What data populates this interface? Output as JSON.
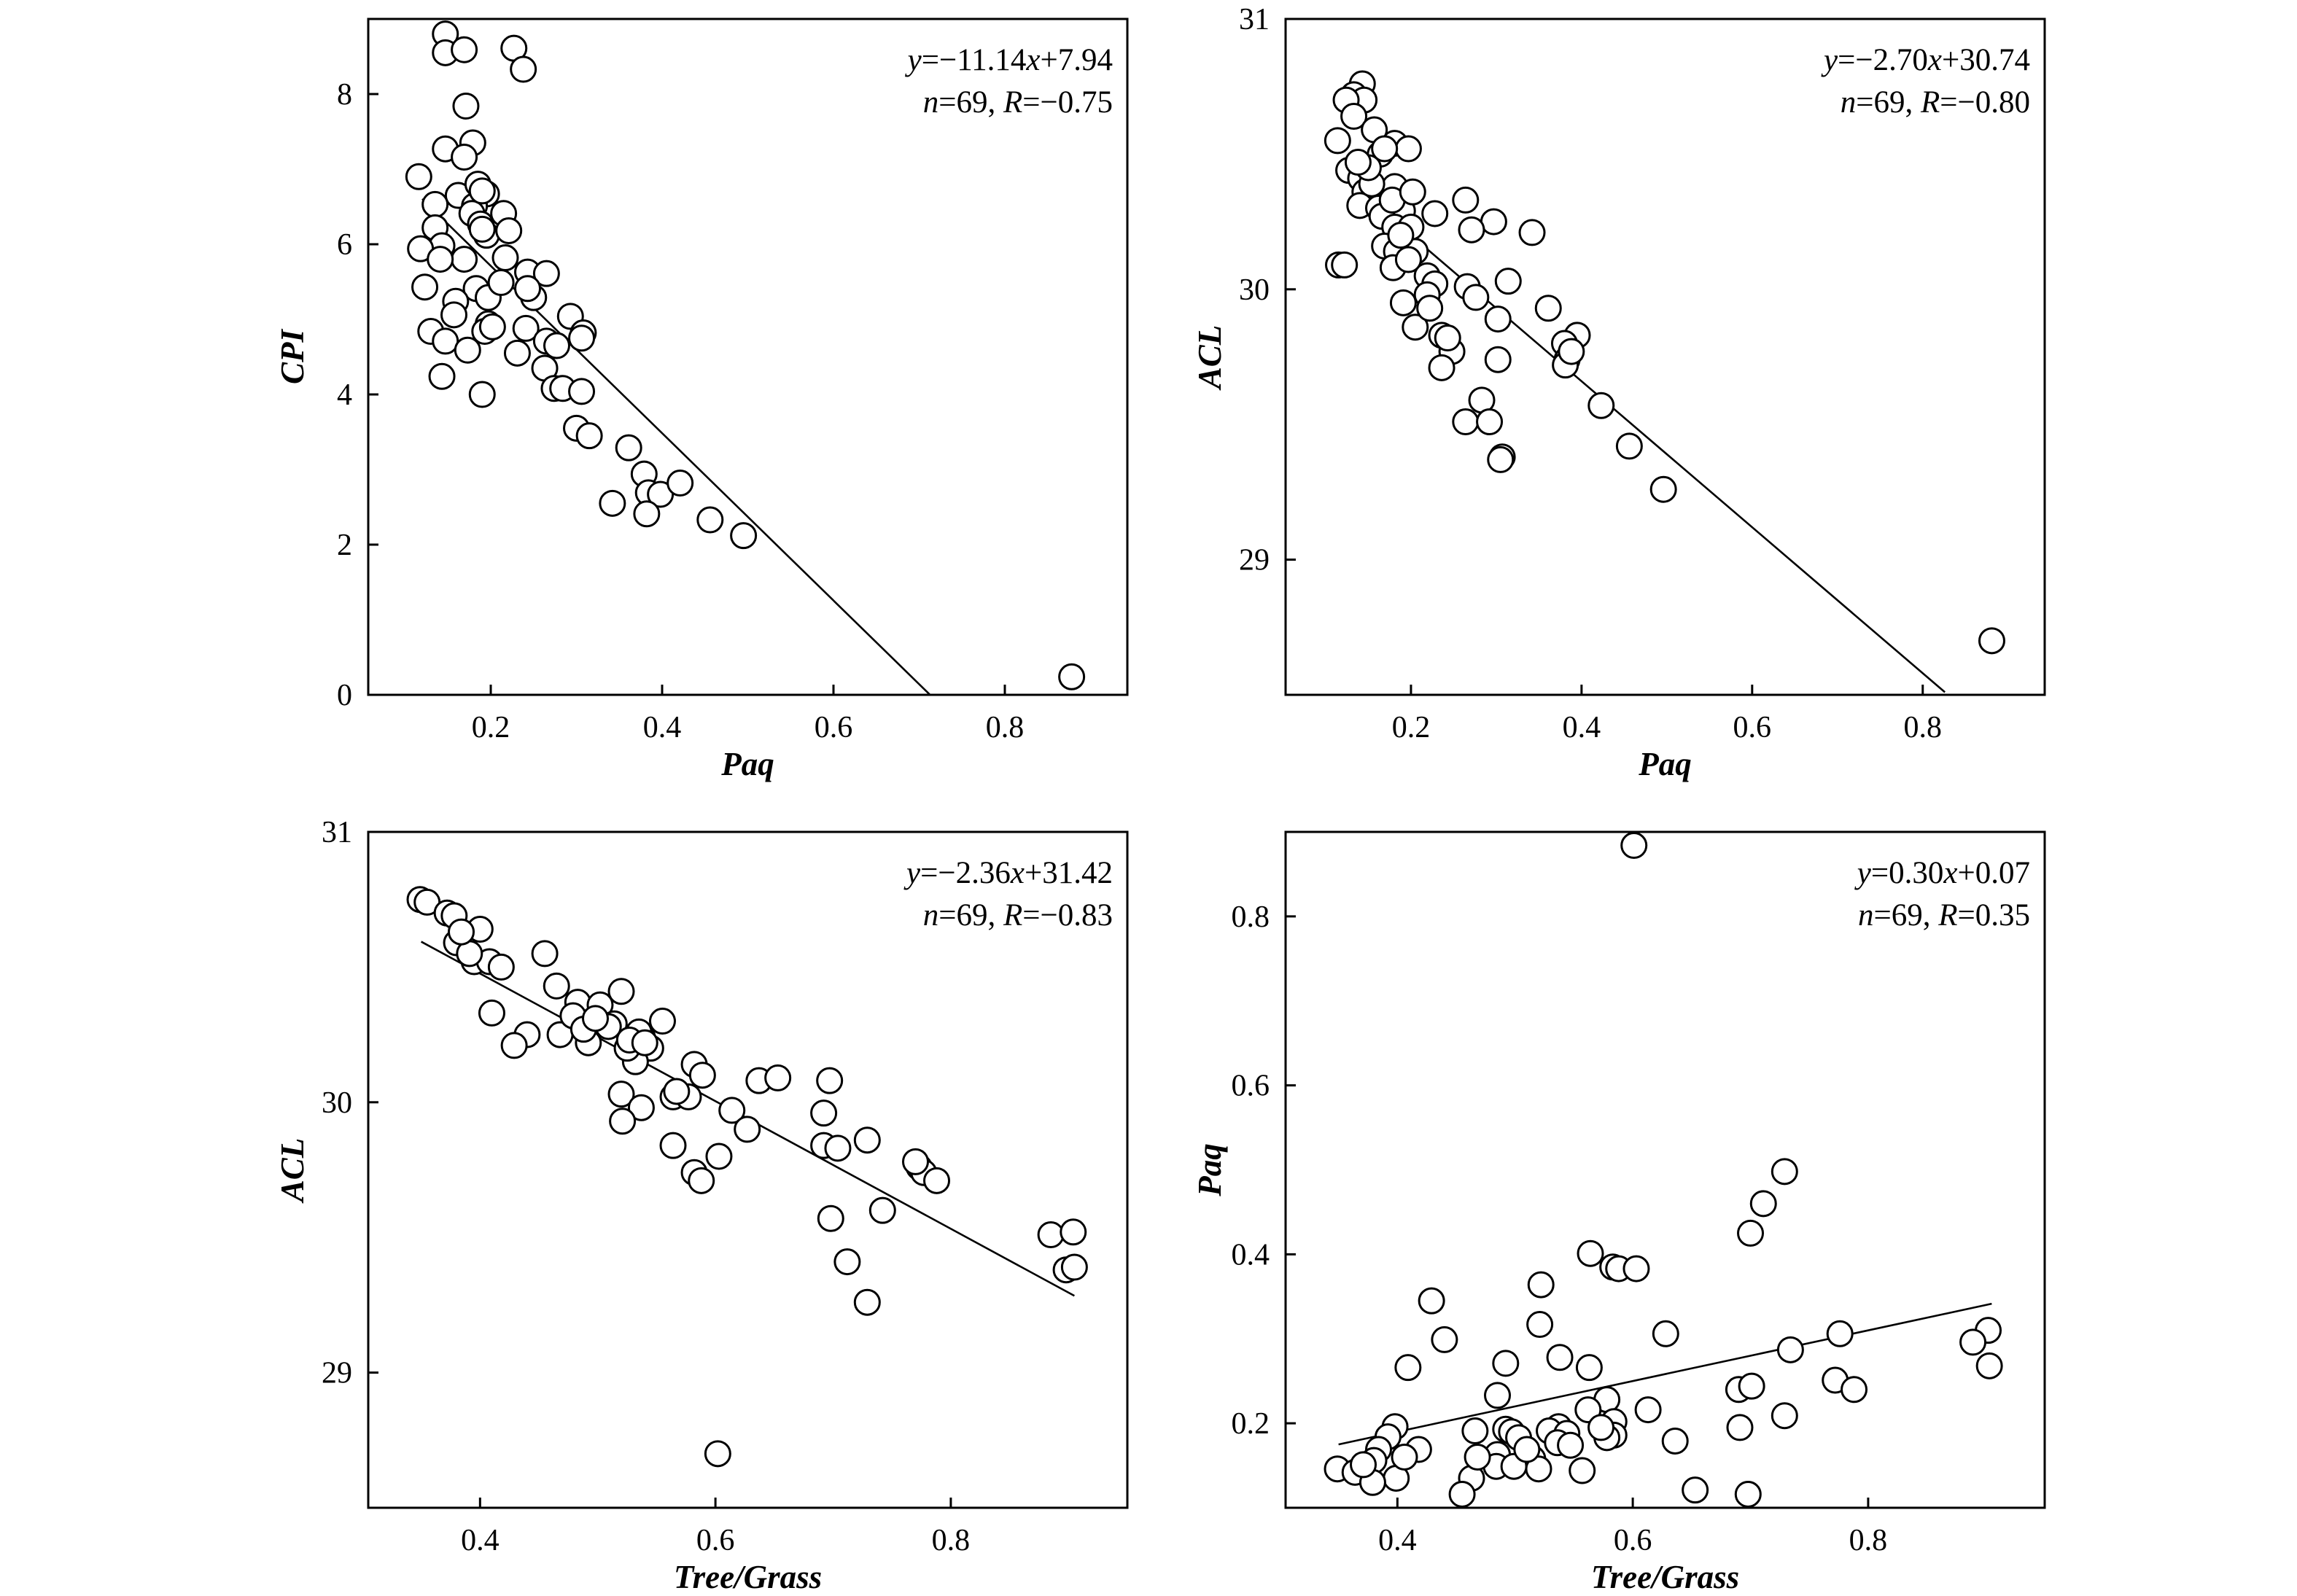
{
  "colors": {
    "marker_edge": "#000000",
    "marker_fill": "#ffffff",
    "line": "#000000",
    "frame": "#000000"
  },
  "chart_data": [
    {
      "type": "scatter",
      "xlabel": "Paq",
      "ylabel": "CPI",
      "xlim": [
        0.057,
        0.943
      ],
      "ylim": [
        0,
        9
      ],
      "xticks": [
        "0.2",
        "0.4",
        "0.6",
        "0.8"
      ],
      "yticks": [
        "0",
        "2",
        "4",
        "6",
        "8"
      ],
      "grid": false,
      "equation": "y=−11.14x+7.94",
      "stats": "n=69, R=−0.75",
      "fit": {
        "slope": -11.14,
        "intercept": 7.94,
        "x_range": [
          0.12,
          0.713
        ]
      },
      "points": [
        [
          0.147,
          8.8
        ],
        [
          0.147,
          8.55
        ],
        [
          0.169,
          8.59
        ],
        [
          0.227,
          8.61
        ],
        [
          0.238,
          8.33
        ],
        [
          0.171,
          7.84
        ],
        [
          0.147,
          7.27
        ],
        [
          0.179,
          7.35
        ],
        [
          0.169,
          7.16
        ],
        [
          0.116,
          6.9
        ],
        [
          0.162,
          6.65
        ],
        [
          0.185,
          6.8
        ],
        [
          0.195,
          6.67
        ],
        [
          0.135,
          6.53
        ],
        [
          0.181,
          6.51
        ],
        [
          0.178,
          6.41
        ],
        [
          0.215,
          6.41
        ],
        [
          0.135,
          6.22
        ],
        [
          0.188,
          6.27
        ],
        [
          0.195,
          6.12
        ],
        [
          0.143,
          5.98
        ],
        [
          0.118,
          5.94
        ],
        [
          0.169,
          5.8
        ],
        [
          0.141,
          5.8
        ],
        [
          0.217,
          5.82
        ],
        [
          0.243,
          5.63
        ],
        [
          0.265,
          5.61
        ],
        [
          0.183,
          5.41
        ],
        [
          0.123,
          5.43
        ],
        [
          0.159,
          5.24
        ],
        [
          0.197,
          5.29
        ],
        [
          0.25,
          5.29
        ],
        [
          0.293,
          5.04
        ],
        [
          0.197,
          4.94
        ],
        [
          0.193,
          4.84
        ],
        [
          0.202,
          4.9
        ],
        [
          0.241,
          4.88
        ],
        [
          0.13,
          4.84
        ],
        [
          0.147,
          4.71
        ],
        [
          0.308,
          4.82
        ],
        [
          0.306,
          4.75
        ],
        [
          0.173,
          4.59
        ],
        [
          0.265,
          4.71
        ],
        [
          0.277,
          4.65
        ],
        [
          0.231,
          4.55
        ],
        [
          0.263,
          4.35
        ],
        [
          0.143,
          4.24
        ],
        [
          0.274,
          4.08
        ],
        [
          0.284,
          4.08
        ],
        [
          0.306,
          4.04
        ],
        [
          0.19,
          4.0
        ],
        [
          0.3,
          3.55
        ],
        [
          0.315,
          3.45
        ],
        [
          0.361,
          3.29
        ],
        [
          0.379,
          2.94
        ],
        [
          0.384,
          2.69
        ],
        [
          0.398,
          2.67
        ],
        [
          0.421,
          2.82
        ],
        [
          0.342,
          2.55
        ],
        [
          0.382,
          2.41
        ],
        [
          0.456,
          2.33
        ],
        [
          0.495,
          2.12
        ],
        [
          0.878,
          0.24
        ],
        [
          0.19,
          6.2
        ],
        [
          0.212,
          5.49
        ],
        [
          0.157,
          5.06
        ],
        [
          0.19,
          6.71
        ],
        [
          0.221,
          6.18
        ],
        [
          0.243,
          5.41
        ]
      ]
    },
    {
      "type": "scatter",
      "xlabel": "Paq",
      "ylabel": "ACL",
      "xlim": [
        0.053,
        0.943
      ],
      "ylim": [
        28.5,
        31
      ],
      "xticks": [
        "0.2",
        "0.4",
        "0.6",
        "0.8"
      ],
      "yticks": [
        "29",
        "30",
        "31"
      ],
      "grid": false,
      "equation": "y=−2.70x+30.74",
      "stats": "n=69, R=−0.80",
      "fit": {
        "slope": -2.7,
        "intercept": 30.74,
        "x_range": [
          0.114,
          0.826
        ]
      },
      "points": [
        [
          0.143,
          30.76
        ],
        [
          0.133,
          30.72
        ],
        [
          0.145,
          30.7
        ],
        [
          0.124,
          30.7
        ],
        [
          0.133,
          30.64
        ],
        [
          0.157,
          30.59
        ],
        [
          0.114,
          30.55
        ],
        [
          0.181,
          30.54
        ],
        [
          0.197,
          30.52
        ],
        [
          0.164,
          30.5
        ],
        [
          0.169,
          30.52
        ],
        [
          0.127,
          30.44
        ],
        [
          0.141,
          30.41
        ],
        [
          0.181,
          30.38
        ],
        [
          0.146,
          30.36
        ],
        [
          0.14,
          30.31
        ],
        [
          0.162,
          30.3
        ],
        [
          0.19,
          30.29
        ],
        [
          0.228,
          30.28
        ],
        [
          0.264,
          30.33
        ],
        [
          0.166,
          30.27
        ],
        [
          0.181,
          30.23
        ],
        [
          0.2,
          30.23
        ],
        [
          0.297,
          30.25
        ],
        [
          0.271,
          30.22
        ],
        [
          0.342,
          30.21
        ],
        [
          0.169,
          30.16
        ],
        [
          0.183,
          30.14
        ],
        [
          0.205,
          30.14
        ],
        [
          0.115,
          30.09
        ],
        [
          0.122,
          30.09
        ],
        [
          0.179,
          30.08
        ],
        [
          0.219,
          30.05
        ],
        [
          0.228,
          30.02
        ],
        [
          0.266,
          30.01
        ],
        [
          0.314,
          30.03
        ],
        [
          0.219,
          29.98
        ],
        [
          0.191,
          29.95
        ],
        [
          0.276,
          29.97
        ],
        [
          0.361,
          29.93
        ],
        [
          0.302,
          29.89
        ],
        [
          0.205,
          29.86
        ],
        [
          0.236,
          29.83
        ],
        [
          0.395,
          29.83
        ],
        [
          0.38,
          29.8
        ],
        [
          0.248,
          29.77
        ],
        [
          0.302,
          29.74
        ],
        [
          0.383,
          29.74
        ],
        [
          0.236,
          29.71
        ],
        [
          0.381,
          29.72
        ],
        [
          0.423,
          29.57
        ],
        [
          0.283,
          29.59
        ],
        [
          0.264,
          29.51
        ],
        [
          0.292,
          29.51
        ],
        [
          0.456,
          29.42
        ],
        [
          0.307,
          29.38
        ],
        [
          0.305,
          29.37
        ],
        [
          0.496,
          29.26
        ],
        [
          0.881,
          28.7
        ],
        [
          0.154,
          30.39
        ],
        [
          0.188,
          30.2
        ],
        [
          0.178,
          30.33
        ],
        [
          0.202,
          30.36
        ],
        [
          0.15,
          30.45
        ],
        [
          0.197,
          30.11
        ],
        [
          0.243,
          29.82
        ],
        [
          0.388,
          29.77
        ],
        [
          0.222,
          29.93
        ],
        [
          0.138,
          30.47
        ]
      ]
    },
    {
      "type": "scatter",
      "xlabel": "Tree/Grass",
      "ylabel": "ACL",
      "xlim": [
        0.305,
        0.95
      ],
      "ylim": [
        28.5,
        31
      ],
      "xticks": [
        "0.4",
        "0.6",
        "0.8"
      ],
      "yticks": [
        "29",
        "30",
        "31"
      ],
      "grid": false,
      "equation": "y=−2.36x+31.42",
      "stats": "n=69, R=−0.83",
      "fit": {
        "slope": -2.36,
        "intercept": 31.42,
        "x_range": [
          0.35,
          0.905
        ]
      },
      "points": [
        [
          0.349,
          30.75
        ],
        [
          0.355,
          30.74
        ],
        [
          0.372,
          30.7
        ],
        [
          0.378,
          30.69
        ],
        [
          0.4,
          30.64
        ],
        [
          0.38,
          30.59
        ],
        [
          0.395,
          30.52
        ],
        [
          0.408,
          30.52
        ],
        [
          0.418,
          30.5
        ],
        [
          0.455,
          30.55
        ],
        [
          0.465,
          30.43
        ],
        [
          0.52,
          30.41
        ],
        [
          0.483,
          30.37
        ],
        [
          0.502,
          30.36
        ],
        [
          0.41,
          30.33
        ],
        [
          0.555,
          30.3
        ],
        [
          0.495,
          30.3
        ],
        [
          0.514,
          30.29
        ],
        [
          0.468,
          30.25
        ],
        [
          0.44,
          30.25
        ],
        [
          0.492,
          30.22
        ],
        [
          0.538,
          30.24
        ],
        [
          0.545,
          30.2
        ],
        [
          0.429,
          30.21
        ],
        [
          0.532,
          30.15
        ],
        [
          0.582,
          30.14
        ],
        [
          0.525,
          30.2
        ],
        [
          0.589,
          30.1
        ],
        [
          0.637,
          30.08
        ],
        [
          0.653,
          30.09
        ],
        [
          0.697,
          30.08
        ],
        [
          0.564,
          30.02
        ],
        [
          0.577,
          30.02
        ],
        [
          0.52,
          30.03
        ],
        [
          0.614,
          29.97
        ],
        [
          0.537,
          29.98
        ],
        [
          0.692,
          29.96
        ],
        [
          0.521,
          29.93
        ],
        [
          0.627,
          29.9
        ],
        [
          0.564,
          29.84
        ],
        [
          0.603,
          29.8
        ],
        [
          0.692,
          29.84
        ],
        [
          0.704,
          29.83
        ],
        [
          0.729,
          29.86
        ],
        [
          0.582,
          29.74
        ],
        [
          0.588,
          29.71
        ],
        [
          0.773,
          29.76
        ],
        [
          0.777,
          29.74
        ],
        [
          0.788,
          29.71
        ],
        [
          0.742,
          29.6
        ],
        [
          0.698,
          29.57
        ],
        [
          0.885,
          29.51
        ],
        [
          0.904,
          29.52
        ],
        [
          0.712,
          29.41
        ],
        [
          0.898,
          29.38
        ],
        [
          0.905,
          29.39
        ],
        [
          0.729,
          29.26
        ],
        [
          0.602,
          28.7
        ],
        [
          0.479,
          30.32
        ],
        [
          0.509,
          30.28
        ],
        [
          0.535,
          30.26
        ],
        [
          0.488,
          30.27
        ],
        [
          0.391,
          30.55
        ],
        [
          0.567,
          30.04
        ],
        [
          0.527,
          30.23
        ],
        [
          0.54,
          30.22
        ],
        [
          0.498,
          30.31
        ],
        [
          0.384,
          30.63
        ],
        [
          0.77,
          29.78
        ]
      ]
    },
    {
      "type": "scatter",
      "xlabel": "Tree/Grass",
      "ylabel": "Paq",
      "xlim": [
        0.305,
        0.95
      ],
      "ylim": [
        0.1,
        0.9
      ],
      "xticks": [
        "0.4",
        "0.6",
        "0.8"
      ],
      "yticks": [
        "0.2",
        "0.4",
        "0.6",
        "0.8"
      ],
      "grid": false,
      "equation": "y=0.30x+0.07",
      "stats": "n=69, R=0.35",
      "fit": {
        "slope": 0.3,
        "intercept": 0.07,
        "x_range": [
          0.35,
          0.905
        ]
      },
      "points": [
        [
          0.601,
          0.884
        ],
        [
          0.729,
          0.498
        ],
        [
          0.711,
          0.46
        ],
        [
          0.7,
          0.425
        ],
        [
          0.564,
          0.401
        ],
        [
          0.583,
          0.385
        ],
        [
          0.588,
          0.383
        ],
        [
          0.603,
          0.383
        ],
        [
          0.522,
          0.364
        ],
        [
          0.429,
          0.345
        ],
        [
          0.521,
          0.317
        ],
        [
          0.628,
          0.306
        ],
        [
          0.776,
          0.306
        ],
        [
          0.902,
          0.31
        ],
        [
          0.889,
          0.296
        ],
        [
          0.44,
          0.299
        ],
        [
          0.734,
          0.287
        ],
        [
          0.492,
          0.271
        ],
        [
          0.538,
          0.278
        ],
        [
          0.409,
          0.266
        ],
        [
          0.563,
          0.266
        ],
        [
          0.903,
          0.268
        ],
        [
          0.772,
          0.251
        ],
        [
          0.788,
          0.24
        ],
        [
          0.69,
          0.24
        ],
        [
          0.701,
          0.244
        ],
        [
          0.485,
          0.233
        ],
        [
          0.578,
          0.228
        ],
        [
          0.562,
          0.216
        ],
        [
          0.613,
          0.216
        ],
        [
          0.729,
          0.209
        ],
        [
          0.584,
          0.202
        ],
        [
          0.398,
          0.196
        ],
        [
          0.392,
          0.184
        ],
        [
          0.466,
          0.191
        ],
        [
          0.492,
          0.193
        ],
        [
          0.497,
          0.19
        ],
        [
          0.537,
          0.196
        ],
        [
          0.529,
          0.191
        ],
        [
          0.544,
          0.188
        ],
        [
          0.584,
          0.186
        ],
        [
          0.691,
          0.195
        ],
        [
          0.503,
          0.183
        ],
        [
          0.536,
          0.177
        ],
        [
          0.636,
          0.179
        ],
        [
          0.578,
          0.183
        ],
        [
          0.384,
          0.169
        ],
        [
          0.418,
          0.169
        ],
        [
          0.485,
          0.163
        ],
        [
          0.515,
          0.158
        ],
        [
          0.38,
          0.156
        ],
        [
          0.349,
          0.146
        ],
        [
          0.364,
          0.142
        ],
        [
          0.484,
          0.149
        ],
        [
          0.499,
          0.149
        ],
        [
          0.52,
          0.146
        ],
        [
          0.557,
          0.144
        ],
        [
          0.463,
          0.135
        ],
        [
          0.399,
          0.135
        ],
        [
          0.379,
          0.13
        ],
        [
          0.455,
          0.116
        ],
        [
          0.653,
          0.121
        ],
        [
          0.698,
          0.116
        ],
        [
          0.468,
          0.16
        ],
        [
          0.547,
          0.174
        ],
        [
          0.406,
          0.16
        ],
        [
          0.51,
          0.169
        ],
        [
          0.573,
          0.195
        ],
        [
          0.371,
          0.151
        ]
      ]
    }
  ]
}
